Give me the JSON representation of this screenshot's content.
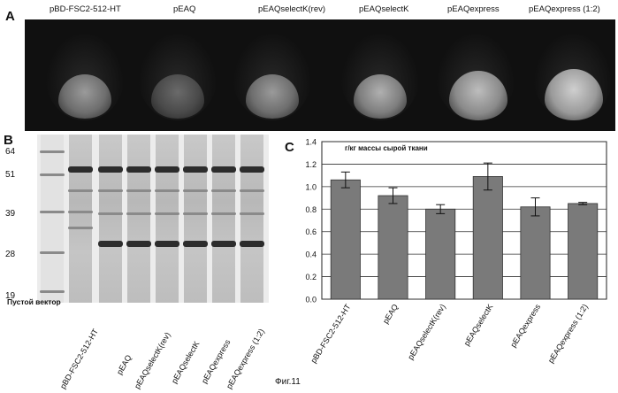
{
  "panel_a": {
    "letter": "A",
    "labels": [
      "pBD-FSC2-512-HT",
      "pEAQ",
      "pEAQselectK(rev)",
      "pEAQselectK",
      "pEAQexpress",
      "pEAQexpress (1:2)"
    ]
  },
  "panel_b": {
    "letter": "B",
    "mw_markers": [
      "64",
      "51",
      "39",
      "28",
      "19"
    ],
    "empty_vector_label": "Пустой вектор",
    "lane_labels": [
      "pBD-FSC2-512-HT",
      "pEAQ",
      "pEAQselectK(rev)",
      "pEAQselectK",
      "pEAQexpress",
      "pEAQexpress (1:2)"
    ]
  },
  "panel_c": {
    "letter": "C"
  },
  "chart_data": {
    "type": "bar",
    "title": "г/кг массы сырой ткани",
    "categories": [
      "pBD-FSC2-512-HT",
      "pEAQ",
      "pEAQselectK(rev)",
      "pEAQselectK",
      "pEAQexpress",
      "pEAQexpress (1:2)"
    ],
    "values": [
      1.06,
      0.92,
      0.8,
      1.09,
      0.82,
      0.85
    ],
    "errors": [
      0.07,
      0.07,
      0.04,
      0.12,
      0.08,
      0.01
    ],
    "ylim": [
      0,
      1.4
    ],
    "yticks": [
      "0.0",
      "0.2",
      "0.4",
      "0.6",
      "0.8",
      "1.0",
      "1.2",
      "1.4"
    ],
    "grid": true,
    "colors": {
      "bar": "#7a7a7a",
      "bar_edge": "#333333"
    }
  },
  "figure_caption": "Фиг.11"
}
